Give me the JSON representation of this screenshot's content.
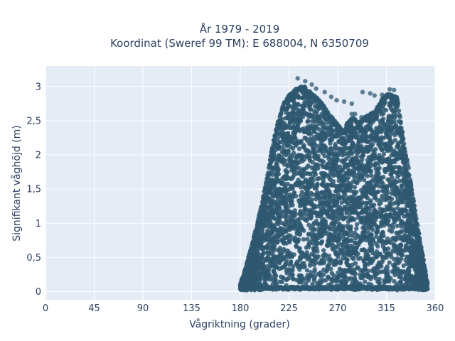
{
  "chart_data": {
    "type": "scatter",
    "title_line1": "År 1979 - 2019",
    "title_line2": "Koordinat (Sweref 99 TM): E 688004, N 6350709",
    "xlabel": "Vågriktning (grader)",
    "ylabel": "Signifikant våghöjd (m)",
    "xlim": [
      0,
      360
    ],
    "ylim": [
      -0.12,
      3.3
    ],
    "xticks": [
      0,
      45,
      90,
      135,
      180,
      225,
      270,
      315,
      360
    ],
    "xtick_labels": [
      "0",
      "45",
      "90",
      "135",
      "180",
      "225",
      "270",
      "315",
      "360"
    ],
    "yticks": [
      0,
      0.5,
      1,
      1.5,
      2,
      2.5,
      3
    ],
    "ytick_labels": [
      "0",
      "0,5",
      "1",
      "1,5",
      "2",
      "2,5",
      "3"
    ],
    "grid": true,
    "plot_bg": "#e5ecf6",
    "point_color": "#2e5870",
    "envelope": [
      [
        180,
        0.12
      ],
      [
        185,
        0.35
      ],
      [
        190,
        0.65
      ],
      [
        195,
        0.95
      ],
      [
        200,
        1.3
      ],
      [
        205,
        1.7
      ],
      [
        210,
        2.15
      ],
      [
        215,
        2.5
      ],
      [
        220,
        2.75
      ],
      [
        225,
        2.88
      ],
      [
        230,
        2.95
      ],
      [
        235,
        3.0
      ],
      [
        240,
        3.0
      ],
      [
        245,
        2.92
      ],
      [
        250,
        2.85
      ],
      [
        255,
        2.78
      ],
      [
        260,
        2.65
      ],
      [
        265,
        2.55
      ],
      [
        270,
        2.45
      ],
      [
        275,
        2.35
      ],
      [
        280,
        2.5
      ],
      [
        285,
        2.55
      ],
      [
        290,
        2.48
      ],
      [
        295,
        2.55
      ],
      [
        300,
        2.6
      ],
      [
        305,
        2.65
      ],
      [
        310,
        2.8
      ],
      [
        315,
        2.9
      ],
      [
        320,
        2.88
      ],
      [
        325,
        2.85
      ],
      [
        330,
        2.3
      ],
      [
        335,
        1.85
      ],
      [
        340,
        1.35
      ],
      [
        345,
        0.85
      ],
      [
        350,
        0.4
      ],
      [
        353,
        0.12
      ]
    ],
    "outliers": [
      [
        233,
        3.12
      ],
      [
        240,
        3.08
      ],
      [
        246,
        3.03
      ],
      [
        250,
        2.97
      ],
      [
        258,
        2.92
      ],
      [
        264,
        2.85
      ],
      [
        269,
        2.8
      ],
      [
        276,
        2.78
      ],
      [
        283,
        2.75
      ],
      [
        293,
        2.92
      ],
      [
        300,
        2.9
      ],
      [
        304,
        2.87
      ],
      [
        311,
        2.88
      ],
      [
        318,
        2.96
      ],
      [
        322,
        2.95
      ],
      [
        283,
        2.6
      ],
      [
        286,
        2.6
      ],
      [
        292,
        2.55
      ],
      [
        298,
        2.5
      ],
      [
        306,
        2.55
      ]
    ]
  }
}
